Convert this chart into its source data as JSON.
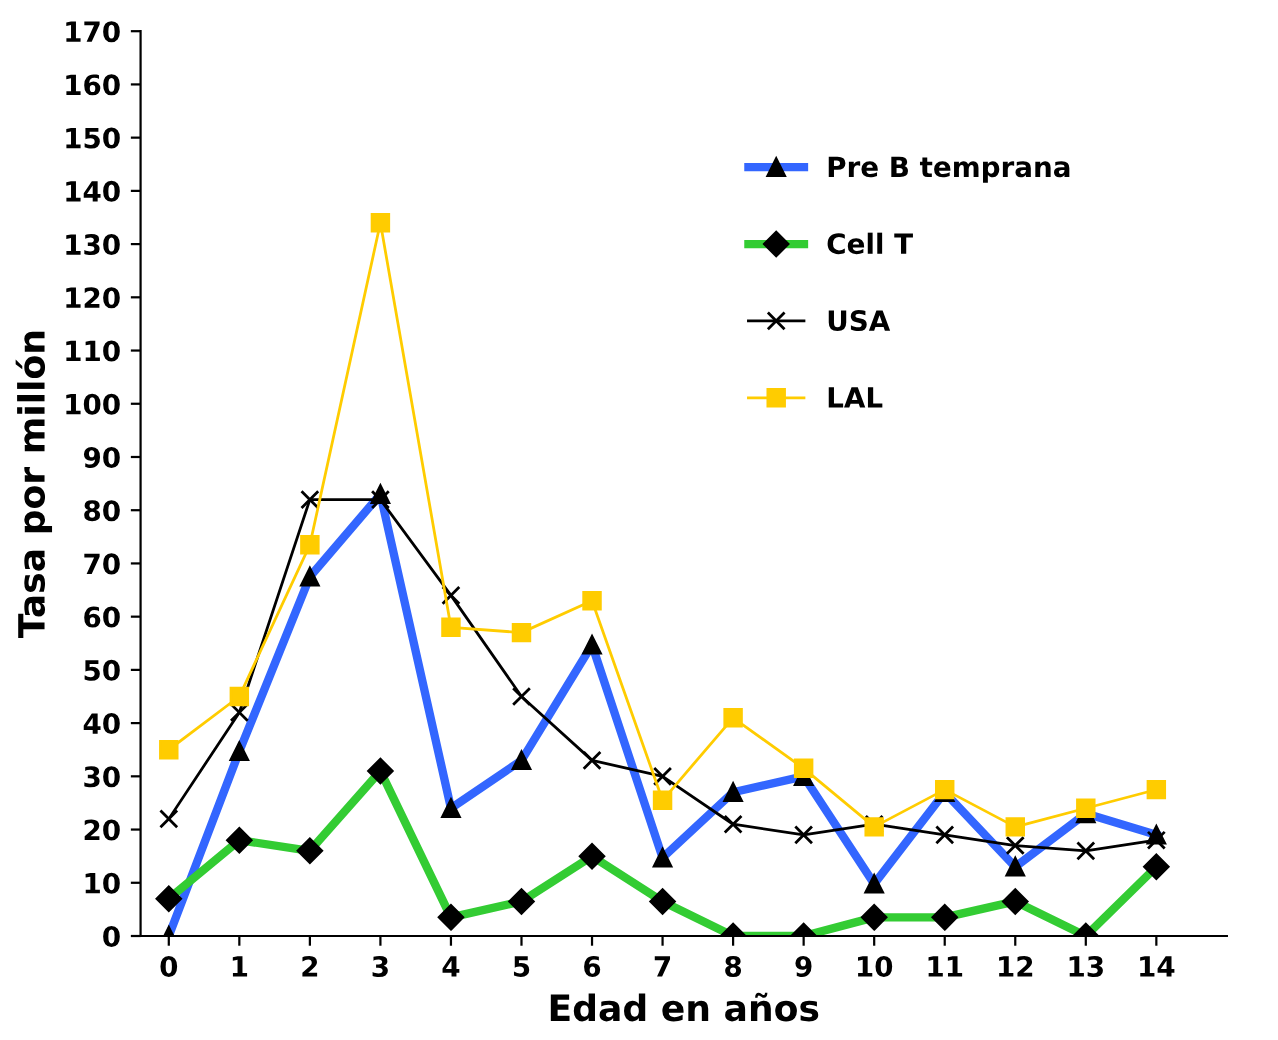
{
  "chart_data": {
    "type": "line",
    "xlabel": "Edad en años",
    "ylabel": "Tasa por millón",
    "categories": [
      "0",
      "1",
      "2",
      "3",
      "4",
      "5",
      "6",
      "7",
      "8",
      "9",
      "10",
      "11",
      "12",
      "13",
      "14"
    ],
    "ylim": [
      0,
      170
    ],
    "yticks": [
      0,
      10,
      20,
      30,
      40,
      50,
      60,
      70,
      80,
      90,
      100,
      110,
      120,
      130,
      140,
      150,
      160,
      170
    ],
    "grid": false,
    "legend": "right",
    "series": [
      {
        "name": "Pre B temprana",
        "color": "#3366ff",
        "marker": "triangle",
        "values": [
          0,
          34.7,
          67.5,
          83,
          24,
          33,
          54.7,
          14.7,
          27,
          30,
          9.8,
          27,
          13,
          23,
          19
        ]
      },
      {
        "name": "Cell T",
        "color": "#33cc33",
        "marker": "diamond",
        "values": [
          7,
          18,
          16,
          31,
          3.5,
          6.5,
          15,
          6.5,
          0,
          0,
          3.5,
          3.5,
          6.5,
          0,
          13
        ]
      },
      {
        "name": "USA",
        "color": "#000000",
        "marker": "cross",
        "values": [
          22,
          42,
          82,
          82,
          64,
          45,
          33,
          30,
          21,
          19,
          21,
          19,
          17,
          16,
          18
        ]
      },
      {
        "name": "LAL",
        "color": "#ffcc00",
        "marker": "square",
        "values": [
          35,
          45,
          73.5,
          134,
          58,
          57,
          63,
          25.5,
          41,
          31.5,
          20.5,
          27.5,
          20.5,
          24,
          27.5
        ]
      }
    ]
  }
}
